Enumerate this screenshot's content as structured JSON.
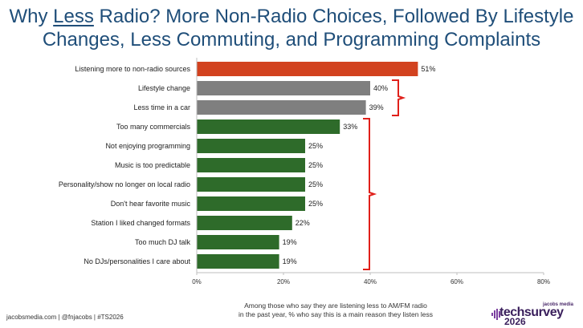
{
  "title": {
    "part1": "Why ",
    "underlined": "Less",
    "part2": " Radio? More Non-Radio Choices, Followed By Lifestyle",
    "line2": "Changes, Less Commuting, and Programming Complaints"
  },
  "footer": {
    "left": "jacobsmedia.com  |  @fnjacobs  |  #TS2026",
    "note_line1": "Among those who say they are listening less to AM/FM radio",
    "note_line2": "in the past year, % who say this is a main reason they listen less"
  },
  "logo": {
    "small": "jacobs media",
    "big": "techsurvey",
    "year": "2026"
  },
  "colors": {
    "title": "#1f4e79",
    "bar_red": "#d2421f",
    "bar_gray": "#7f7f7f",
    "bar_green": "#2e6b2a",
    "bracket": "#e0201a"
  },
  "chart_data": {
    "type": "bar",
    "orientation": "horizontal",
    "categories": [
      "Listening more to non-radio sources",
      "Lifestyle change",
      "Less time in a car",
      "Too many commercials",
      "Not enjoying programming",
      "Music is too predictable",
      "Personality/show no longer on local radio",
      "Don't hear favorite music",
      "Station I liked changed formats",
      "Too much DJ talk",
      "No DJs/personalities I care about"
    ],
    "values": [
      51,
      40,
      39,
      33,
      25,
      25,
      25,
      25,
      22,
      19,
      19
    ],
    "value_labels": [
      "51%",
      "40%",
      "39%",
      "33%",
      "25%",
      "25%",
      "25%",
      "25%",
      "22%",
      "19%",
      "19%"
    ],
    "bar_groups": [
      "red",
      "gray",
      "gray",
      "green",
      "green",
      "green",
      "green",
      "green",
      "green",
      "green",
      "green"
    ],
    "xlim": [
      0,
      80
    ],
    "xticks": [
      0,
      20,
      40,
      60,
      80
    ],
    "xtick_labels": [
      "0%",
      "20%",
      "40%",
      "60%",
      "80%"
    ],
    "brackets": [
      {
        "from": 1,
        "to": 2
      },
      {
        "from": 3,
        "to": 10
      }
    ],
    "grid": false
  }
}
